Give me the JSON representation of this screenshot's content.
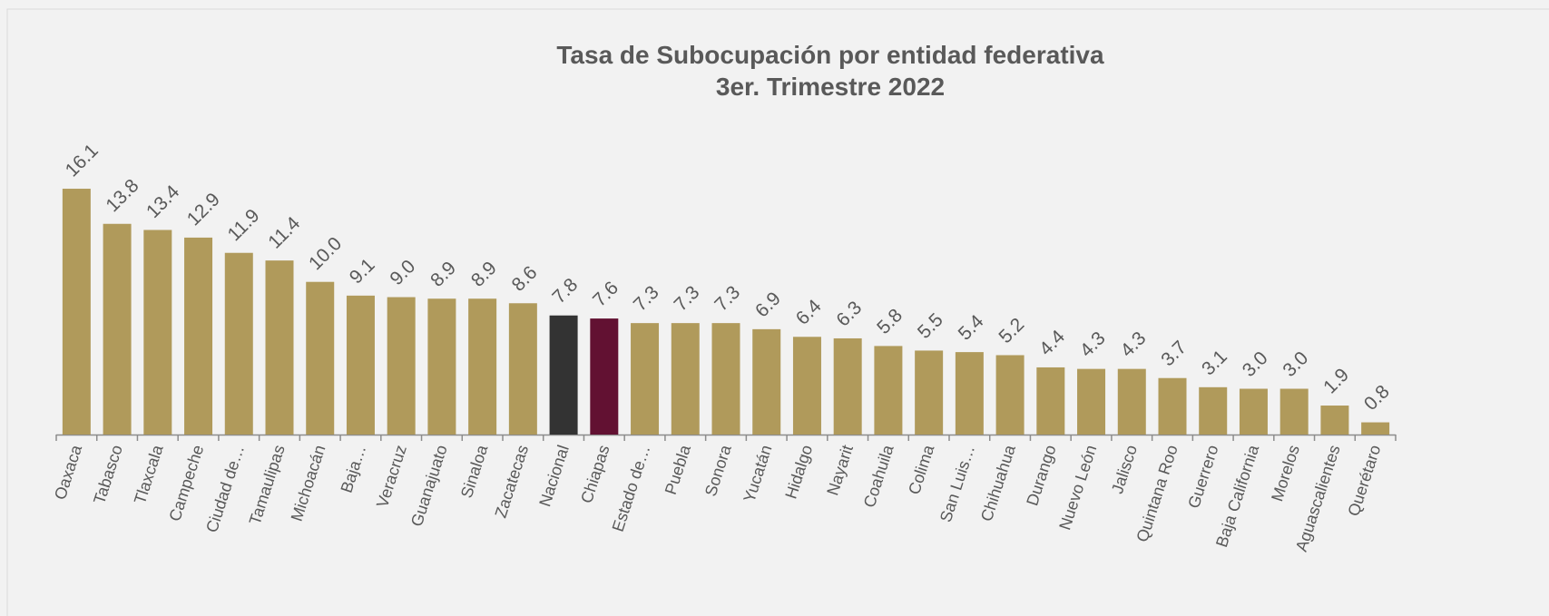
{
  "chart_data": {
    "type": "bar",
    "title": "Tasa de Subocupación por entidad federativa",
    "subtitle": "3er. Trimestre 2022",
    "categories": [
      "Oaxaca",
      "Tabasco",
      "Tlaxcala",
      "Campeche",
      "Ciudad de…",
      "Tamaulipas",
      "Michoacán",
      "Baja…",
      "Veracruz",
      "Guanajuato",
      "Sinaloa",
      "Zacatecas",
      "Nacional",
      "Chiapas",
      "Estado de…",
      "Puebla",
      "Sonora",
      "Yucatán",
      "Hidalgo",
      "Nayarit",
      "Coahuila",
      "Colima",
      "San Luis…",
      "Chihuahua",
      "Durango",
      "Nuevo León",
      "Jalisco",
      "Quintana Roo",
      "Guerrero",
      "Baja California",
      "Morelos",
      "Aguascalientes",
      "Querétaro"
    ],
    "values": [
      16.1,
      13.8,
      13.4,
      12.9,
      11.9,
      11.4,
      10.0,
      9.1,
      9.0,
      8.9,
      8.9,
      8.6,
      7.8,
      7.6,
      7.3,
      7.3,
      7.3,
      6.9,
      6.4,
      6.3,
      5.8,
      5.5,
      5.4,
      5.2,
      4.4,
      4.3,
      4.3,
      3.7,
      3.1,
      3.0,
      3.0,
      1.9,
      0.8
    ],
    "value_labels": [
      "16.1",
      "13.8",
      "13.4",
      "12.9",
      "11.9",
      "11.4",
      "10.0",
      "9.1",
      "9.0",
      "8.9",
      "8.9",
      "8.6",
      "7.8",
      "7.6",
      "7.3",
      "7.3",
      "7.3",
      "6.9",
      "6.4",
      "6.3",
      "5.8",
      "5.5",
      "5.4",
      "5.2",
      "4.4",
      "4.3",
      "4.3",
      "3.7",
      "3.1",
      "3.0",
      "3.0",
      "1.9",
      "0.8"
    ],
    "colors": [
      "#b09a5b",
      "#b09a5b",
      "#b09a5b",
      "#b09a5b",
      "#b09a5b",
      "#b09a5b",
      "#b09a5b",
      "#b09a5b",
      "#b09a5b",
      "#b09a5b",
      "#b09a5b",
      "#b09a5b",
      "#333333",
      "#621132",
      "#b09a5b",
      "#b09a5b",
      "#b09a5b",
      "#b09a5b",
      "#b09a5b",
      "#b09a5b",
      "#b09a5b",
      "#b09a5b",
      "#b09a5b",
      "#b09a5b",
      "#b09a5b",
      "#b09a5b",
      "#b09a5b",
      "#b09a5b",
      "#b09a5b",
      "#b09a5b",
      "#b09a5b",
      "#b09a5b",
      "#b09a5b"
    ]
  }
}
